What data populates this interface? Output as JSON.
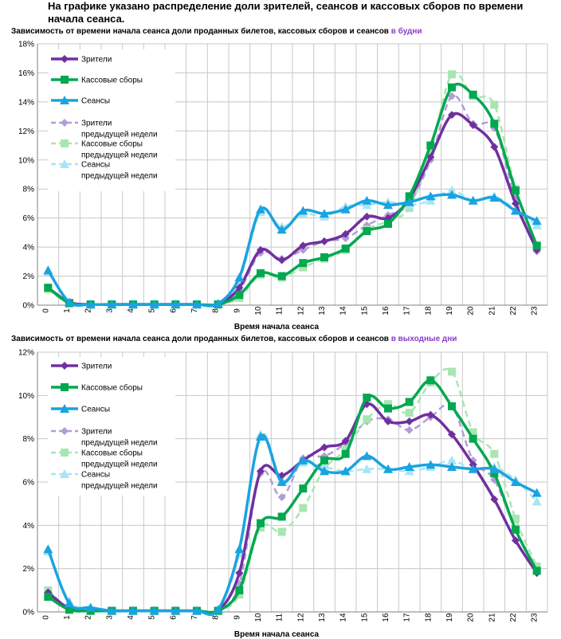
{
  "intro_text": "На графике указано распределение доли зрителей, сеансов и кассовых сборов по времени начала сеанса.",
  "colors": {
    "viewers": "#7030a0",
    "box_office": "#00a850",
    "sessions": "#1aa3e0",
    "viewers_prev": "#b39dd6",
    "box_office_prev": "#a8e6b0",
    "sessions_prev": "#a8e4f5",
    "grid": "#c8c8c8",
    "title_highlight": "#8a3cc8"
  },
  "chart_data": [
    {
      "type": "line",
      "title": "Зависимость от времени начала сеанса доли проданных билетов, кассовых сборов и сеансов",
      "title_highlight": "в будни",
      "xlabel": "Время начала сеанса",
      "ylabel": "",
      "ylim": [
        0,
        18
      ],
      "yticks": [
        0,
        2,
        4,
        6,
        8,
        10,
        12,
        14,
        16,
        18
      ],
      "ytick_labels": [
        "0%",
        "2%",
        "4%",
        "6%",
        "8%",
        "10%",
        "12%",
        "14%",
        "16%",
        "18%"
      ],
      "categories": [
        "0",
        "1",
        "2",
        "3",
        "4",
        "5",
        "6",
        "7",
        "8",
        "9",
        "10",
        "11",
        "12",
        "13",
        "14",
        "15",
        "16",
        "17",
        "18",
        "19",
        "20",
        "21",
        "22",
        "23"
      ],
      "legend_position": "top-left",
      "series": [
        {
          "name": "Зрители",
          "key": "viewers",
          "marker": "diamond",
          "values": [
            1.2,
            0.2,
            0.05,
            0.05,
            0.05,
            0.05,
            0.05,
            0.05,
            0.05,
            1.2,
            3.8,
            3.1,
            4.1,
            4.4,
            4.9,
            6.1,
            6.0,
            7.3,
            10.2,
            13.1,
            12.4,
            10.9,
            7.0,
            3.8
          ]
        },
        {
          "name": "Кассовые сборы",
          "key": "box_office",
          "marker": "square",
          "values": [
            1.2,
            0.15,
            0.05,
            0.05,
            0.05,
            0.05,
            0.05,
            0.05,
            0.05,
            0.7,
            2.2,
            2.0,
            2.9,
            3.3,
            3.9,
            5.1,
            5.6,
            7.5,
            11.0,
            15.0,
            14.5,
            12.5,
            7.9,
            4.1
          ]
        },
        {
          "name": "Сеансы",
          "key": "sessions",
          "marker": "triangle",
          "values": [
            2.4,
            0.2,
            0.05,
            0.05,
            0.05,
            0.05,
            0.05,
            0.05,
            0.1,
            1.9,
            6.6,
            5.2,
            6.5,
            6.3,
            6.6,
            7.2,
            6.9,
            7.1,
            7.5,
            7.6,
            7.2,
            7.4,
            6.5,
            5.8
          ]
        },
        {
          "name": "Зрители предыдущей недели",
          "key": "viewers_prev",
          "marker": "diamond",
          "dashed": true,
          "values": [
            1.1,
            0.2,
            0.05,
            0.05,
            0.05,
            0.05,
            0.05,
            0.05,
            0.05,
            1.0,
            3.6,
            3.2,
            3.8,
            4.4,
            4.6,
            5.5,
            6.2,
            7.0,
            10.0,
            14.4,
            12.5,
            12.2,
            7.3,
            3.7
          ]
        },
        {
          "name": "Кассовые сборы предыдущей недели",
          "key": "box_office_prev",
          "marker": "square",
          "dashed": true,
          "values": [
            1.1,
            0.1,
            0.05,
            0.05,
            0.05,
            0.05,
            0.05,
            0.05,
            0.05,
            0.5,
            2.1,
            1.9,
            2.6,
            3.2,
            3.8,
            5.2,
            5.8,
            6.7,
            10.6,
            15.9,
            14.4,
            13.8,
            8.0,
            4.0
          ]
        },
        {
          "name": "Сеансы предыдущей недели",
          "key": "sessions_prev",
          "marker": "triangle",
          "dashed": true,
          "values": [
            2.3,
            0.2,
            0.05,
            0.05,
            0.05,
            0.05,
            0.05,
            0.05,
            0.1,
            1.7,
            6.4,
            5.4,
            6.3,
            6.1,
            6.8,
            6.9,
            7.1,
            6.9,
            7.2,
            7.9,
            7.2,
            7.5,
            6.6,
            5.5
          ]
        }
      ]
    },
    {
      "type": "line",
      "title": "Зависимость от времени начала сеанса доли проданных билетов, кассовых сборов и сеансов",
      "title_highlight": "в выходные дни",
      "xlabel": "Время начала сеанса",
      "ylabel": "",
      "ylim": [
        0,
        12
      ],
      "yticks": [
        0,
        2,
        4,
        6,
        8,
        10,
        12
      ],
      "ytick_labels": [
        "0%",
        "2%",
        "4%",
        "6%",
        "8%",
        "10%",
        "12%"
      ],
      "categories": [
        "0",
        "1",
        "2",
        "3",
        "4",
        "5",
        "6",
        "7",
        "8",
        "9",
        "10",
        "11",
        "12",
        "13",
        "14",
        "15",
        "16",
        "17",
        "18",
        "19",
        "20",
        "21",
        "22",
        "23"
      ],
      "legend_position": "top-left",
      "series": [
        {
          "name": "Зрители",
          "key": "viewers",
          "marker": "diamond",
          "values": [
            0.9,
            0.15,
            0.05,
            0.05,
            0.05,
            0.05,
            0.05,
            0.05,
            0.05,
            1.8,
            6.5,
            6.3,
            7.0,
            7.6,
            7.9,
            9.6,
            8.8,
            8.8,
            9.1,
            8.2,
            6.8,
            5.2,
            3.3,
            1.8
          ]
        },
        {
          "name": "Кассовые сборы",
          "key": "box_office",
          "marker": "square",
          "values": [
            0.7,
            0.1,
            0.05,
            0.05,
            0.05,
            0.05,
            0.05,
            0.05,
            0.05,
            1.0,
            4.1,
            4.4,
            5.7,
            7.0,
            7.3,
            9.9,
            9.4,
            9.7,
            10.7,
            9.5,
            8.0,
            6.4,
            3.8,
            1.9
          ]
        },
        {
          "name": "Сеансы",
          "key": "sessions",
          "marker": "triangle",
          "values": [
            2.9,
            0.4,
            0.2,
            0.05,
            0.05,
            0.05,
            0.05,
            0.05,
            0.1,
            2.9,
            8.1,
            6.0,
            7.0,
            6.5,
            6.5,
            7.2,
            6.6,
            6.7,
            6.8,
            6.7,
            6.6,
            6.6,
            6.0,
            5.5
          ]
        },
        {
          "name": "Зрители предыдущей недели",
          "key": "viewers_prev",
          "marker": "diamond",
          "dashed": true,
          "values": [
            1.0,
            0.15,
            0.05,
            0.05,
            0.05,
            0.05,
            0.05,
            0.05,
            0.05,
            1.3,
            6.4,
            5.3,
            7.1,
            7.2,
            7.8,
            8.8,
            8.9,
            8.4,
            9.0,
            9.5,
            7.0,
            6.1,
            3.8,
            2.0
          ]
        },
        {
          "name": "Кассовые сборы предыдущей недели",
          "key": "box_office_prev",
          "marker": "square",
          "dashed": true,
          "values": [
            1.0,
            0.1,
            0.05,
            0.05,
            0.05,
            0.05,
            0.05,
            0.05,
            0.05,
            0.8,
            3.9,
            3.7,
            4.8,
            6.6,
            7.5,
            8.9,
            9.6,
            9.2,
            10.6,
            11.1,
            8.3,
            7.3,
            4.3,
            2.1
          ]
        },
        {
          "name": "Сеансы предыдущей недели",
          "key": "sessions_prev",
          "marker": "triangle",
          "dashed": true,
          "values": [
            2.8,
            0.5,
            0.2,
            0.05,
            0.05,
            0.05,
            0.05,
            0.05,
            0.1,
            2.7,
            8.2,
            6.1,
            6.9,
            6.7,
            6.5,
            6.6,
            6.6,
            6.5,
            6.7,
            7.0,
            6.6,
            6.7,
            6.1,
            5.1
          ]
        }
      ]
    }
  ],
  "legend": {
    "viewers": "Зрители",
    "box_office": "Кассовые сборы",
    "sessions": "Сеансы",
    "viewers_prev_line1": "Зрители",
    "viewers_prev_line2": "предыдущей недели",
    "box_office_prev_line1": "Кассовые сборы",
    "box_office_prev_line2": "предыдущей недели",
    "sessions_prev_line1": "Сеансы",
    "sessions_prev_line2": "предыдущей недели"
  }
}
